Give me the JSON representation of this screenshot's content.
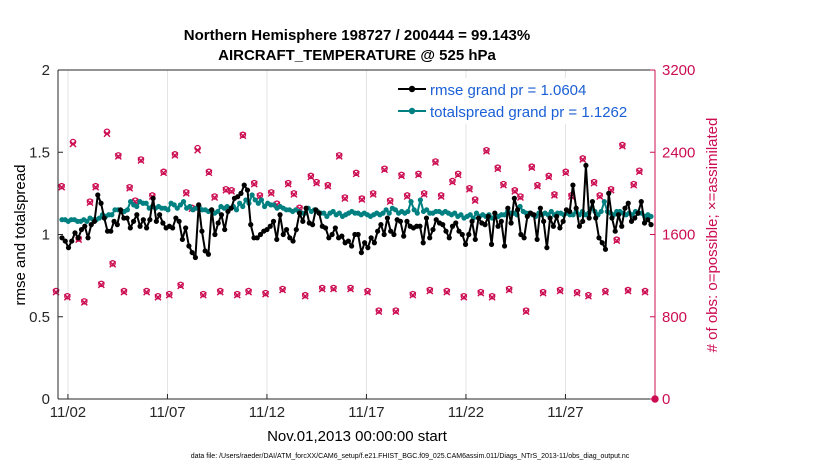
{
  "title_line1": "Northern Hemisphere 198727 / 200444 = 99.143%",
  "title_line2": "AIRCRAFT_TEMPERATURE @ 525 hPa",
  "xlabel": "Nov.01,2013 00:00:00 start",
  "footnote": "data file: /Users/raeder/DAI/ATM_forcXX/CAM6_setup/f.e21.FHIST_BGC.f09_025.CAM6assim.011/Diags_NTrS_2013-11/obs_diag_output.nc",
  "colors": {
    "rmse": "#000000",
    "spread": "#008080",
    "obs": "#cc0d52",
    "legend_text": "#1a5fd6"
  },
  "chart_data": {
    "type": "line",
    "title": "Northern Hemisphere 198727 / 200444 = 99.143% — AIRCRAFT_TEMPERATURE @ 525 hPa",
    "xlabel": "Nov.01,2013 00:00:00 start",
    "ylabel": "rmse and totalspread",
    "y2label": "# of obs: o=possible; ×=assimilated",
    "xlim": [
      0.5,
      30.5
    ],
    "ylim": [
      0,
      2
    ],
    "y2lim": [
      0,
      3200
    ],
    "x_ticks": [
      1,
      6,
      11,
      16,
      21,
      26
    ],
    "x_tick_labels": [
      "11/02",
      "11/07",
      "11/12",
      "11/17",
      "11/22",
      "11/27"
    ],
    "y_ticks": [
      0,
      0.5,
      1,
      1.5,
      2
    ],
    "y_tick_labels": [
      "0",
      "0.5",
      "1",
      "1.5",
      "2"
    ],
    "y2_ticks": [
      0,
      800,
      1600,
      2400,
      3200
    ],
    "y2_tick_labels": [
      "0",
      "800",
      "1600",
      "2400",
      "3200"
    ],
    "grid": "vertical lines at x ticks",
    "legend_position": "top-right",
    "series": [
      {
        "name": "rmse grand pr = 1.0604",
        "axis": "left",
        "marker": "filled circle",
        "values": [
          0.98,
          0.96,
          0.92,
          0.96,
          1.01,
          0.98,
          1.03,
          1.05,
          0.98,
          1.06,
          1.08,
          1.24,
          1.19,
          1.1,
          1.02,
          1.02,
          1.08,
          1.06,
          1.15,
          1.1,
          1.1,
          1.04,
          1.08,
          1.12,
          1.05,
          1.09,
          1.04,
          1.09,
          1.22,
          1.08,
          1.12,
          1.07,
          1.04,
          1.05,
          1.04,
          1.1,
          1.08,
          0.97,
          1.04,
          0.93,
          0.89,
          0.86,
          1.18,
          1.02,
          0.9,
          0.88,
          1.15,
          1.0,
          1.07,
          1.12,
          1.03,
          1.14,
          1.16,
          1.22,
          1.23,
          1.25,
          1.3,
          1.27,
          1.06,
          0.98,
          0.98,
          1.0,
          1.02,
          1.03,
          1.05,
          1.08,
          0.97,
          1.12,
          1.0,
          1.03,
          0.98,
          0.96,
          1.03,
          1.13,
          1.08,
          1.16,
          1.07,
          1.06,
          1.15,
          1.13,
          1.05,
          1.04,
          0.98,
          1.0,
          1.04,
          0.98,
          0.99,
          0.95,
          0.96,
          0.93,
          1.0,
          1.0,
          0.89,
          0.95,
          0.92,
          0.98,
          0.95,
          1.02,
          1.06,
          1.0,
          1.1,
          1.02,
          1.0,
          1.09,
          1.08,
          0.99,
          1.08,
          1.05,
          1.04,
          1.05,
          1.05,
          0.95,
          1.1,
          0.98,
          1.03,
          1.09,
          1.07,
          1.06,
          1.02,
          0.98,
          1.05,
          1.07,
          1.02,
          1.0,
          0.94,
          1.0,
          1.08,
          0.97,
          1.1,
          1.07,
          1.06,
          1.11,
          0.94,
          1.13,
          1.05,
          1.08,
          0.93,
          1.16,
          1.07,
          1.22,
          1.15,
          1.0,
          0.98,
          1.11,
          1.13,
          1.12,
          0.97,
          1.16,
          1.08,
          0.92,
          1.1,
          1.05,
          1.11,
          1.04,
          1.08,
          1.15,
          1.14,
          1.3,
          1.16,
          1.05,
          1.08,
          1.42,
          1.1,
          1.2,
          1.1,
          0.98,
          0.95,
          0.91,
          1.25,
          1.1,
          1.02,
          1.12,
          1.05,
          1.16,
          1.19,
          1.08,
          1.1,
          1.13,
          1.2,
          1.07,
          1.09,
          1.06
        ]
      },
      {
        "name": "totalspread grand pr = 1.1262",
        "axis": "left",
        "marker": "filled circle",
        "values": [
          1.09,
          1.09,
          1.08,
          1.09,
          1.09,
          1.08,
          1.08,
          1.09,
          1.08,
          1.1,
          1.09,
          1.09,
          1.1,
          1.12,
          1.11,
          1.12,
          1.12,
          1.15,
          1.15,
          1.14,
          1.14,
          1.15,
          1.2,
          1.18,
          1.17,
          1.2,
          1.19,
          1.19,
          1.16,
          1.17,
          1.16,
          1.17,
          1.16,
          1.16,
          1.15,
          1.19,
          1.18,
          1.16,
          1.18,
          1.2,
          1.16,
          1.17,
          1.15,
          1.16,
          1.17,
          1.15,
          1.15,
          1.14,
          1.15,
          1.13,
          1.14,
          1.17,
          1.16,
          1.17,
          1.16,
          1.17,
          1.15,
          1.19,
          1.17,
          1.21,
          1.19,
          1.24,
          1.21,
          1.19,
          1.21,
          1.17,
          1.19,
          1.18,
          1.18,
          1.16,
          1.17,
          1.16,
          1.15,
          1.15,
          1.14,
          1.15,
          1.14,
          1.13,
          1.13,
          1.16,
          1.14,
          1.15,
          1.14,
          1.13,
          1.13,
          1.11,
          1.13,
          1.14,
          1.12,
          1.13,
          1.11,
          1.12,
          1.13,
          1.14,
          1.13,
          1.13,
          1.12,
          1.13,
          1.12,
          1.11,
          1.12,
          1.13,
          1.12,
          1.13,
          1.15,
          1.13,
          1.16,
          1.15,
          1.13,
          1.14,
          1.13,
          1.14,
          1.2,
          1.15,
          1.13,
          1.21,
          1.14,
          1.15,
          1.13,
          1.13,
          1.14,
          1.14,
          1.13,
          1.14,
          1.13,
          1.12,
          1.13,
          1.11,
          1.12,
          1.1,
          1.11,
          1.12,
          1.1,
          1.13,
          1.11,
          1.12,
          1.11,
          1.12,
          1.1,
          1.11,
          1.11,
          1.12,
          1.12,
          1.14,
          1.13,
          1.13,
          1.12,
          1.17,
          1.14,
          1.13,
          1.13,
          1.12,
          1.11,
          1.13,
          1.12,
          1.13,
          1.12,
          1.14,
          1.12,
          1.13,
          1.13,
          1.12,
          1.13,
          1.12,
          1.12,
          1.14,
          1.12,
          1.14,
          1.12,
          1.13,
          1.16,
          1.14,
          1.12,
          1.14,
          1.2,
          1.14,
          1.13,
          1.12,
          1.14,
          1.14,
          1.13,
          1.12,
          1.13,
          1.12,
          1.14,
          1.13,
          1.13,
          1.11,
          1.12,
          1.11
        ]
      },
      {
        "name": "# of obs possible (o)",
        "axis": "right",
        "marker": "o",
        "values": [
          1050,
          2070,
          1000,
          2500,
          1560,
          950,
          1920,
          2070,
          1120,
          2600,
          1320,
          2370,
          1050,
          2060,
          1930,
          2330,
          1050,
          1980,
          1000,
          2210,
          1020,
          2380,
          1110,
          2010,
          1860,
          2440,
          1020,
          2210,
          1970,
          1050,
          2040,
          2030,
          1020,
          2570,
          1050,
          2100,
          1980,
          1030,
          2010,
          1900,
          1070,
          2100,
          2000,
          1860,
          1010,
          2170,
          2110,
          1080,
          2080,
          1080,
          2370,
          1960,
          1080,
          2200,
          1950,
          1050,
          2000,
          860,
          2240,
          1930,
          860,
          2180,
          1980,
          1020,
          2190,
          2000,
          1060,
          2310,
          1980,
          1050,
          2120,
          2190,
          1000,
          2050,
          1940,
          1040,
          2420,
          1000,
          2250,
          2090,
          1070,
          2030,
          1970,
          860,
          2260,
          2080,
          1040,
          2170,
          1990,
          1060,
          2210,
          1980,
          1040,
          2340,
          1010,
          2110,
          1980,
          1050,
          2040,
          1550,
          2470,
          1060,
          2090,
          2220,
          1050
        ]
      },
      {
        "name": "# of obs assimilated (×)",
        "axis": "right",
        "marker": "x",
        "values": [
          1040,
          2060,
          990,
          2480,
          1550,
          940,
          1910,
          2060,
          1110,
          2580,
          1310,
          2360,
          1040,
          2050,
          1920,
          2320,
          1040,
          1970,
          990,
          2200,
          1010,
          2370,
          1100,
          2000,
          1850,
          2420,
          1010,
          2200,
          1960,
          1040,
          2030,
          2020,
          1010,
          2560,
          1040,
          2090,
          1970,
          1020,
          2000,
          1890,
          1060,
          2090,
          1990,
          1850,
          1000,
          2160,
          2100,
          1070,
          2070,
          1070,
          2360,
          1950,
          1070,
          2190,
          1940,
          1040,
          1990,
          850,
          2230,
          1920,
          850,
          2170,
          1970,
          1010,
          2180,
          1990,
          1050,
          2300,
          1970,
          1040,
          2110,
          2180,
          990,
          2040,
          1930,
          1030,
          2410,
          990,
          2240,
          2080,
          1060,
          2020,
          1960,
          850,
          2250,
          2070,
          1030,
          2160,
          1980,
          1050,
          2200,
          1970,
          1030,
          2330,
          1000,
          2100,
          1970,
          1040,
          2030,
          1540,
          2460,
          1050,
          2080,
          2210,
          1040
        ]
      }
    ],
    "extra_points": [
      {
        "series": "# of obs possible (o)",
        "x": 30.5,
        "value": 0
      }
    ]
  }
}
